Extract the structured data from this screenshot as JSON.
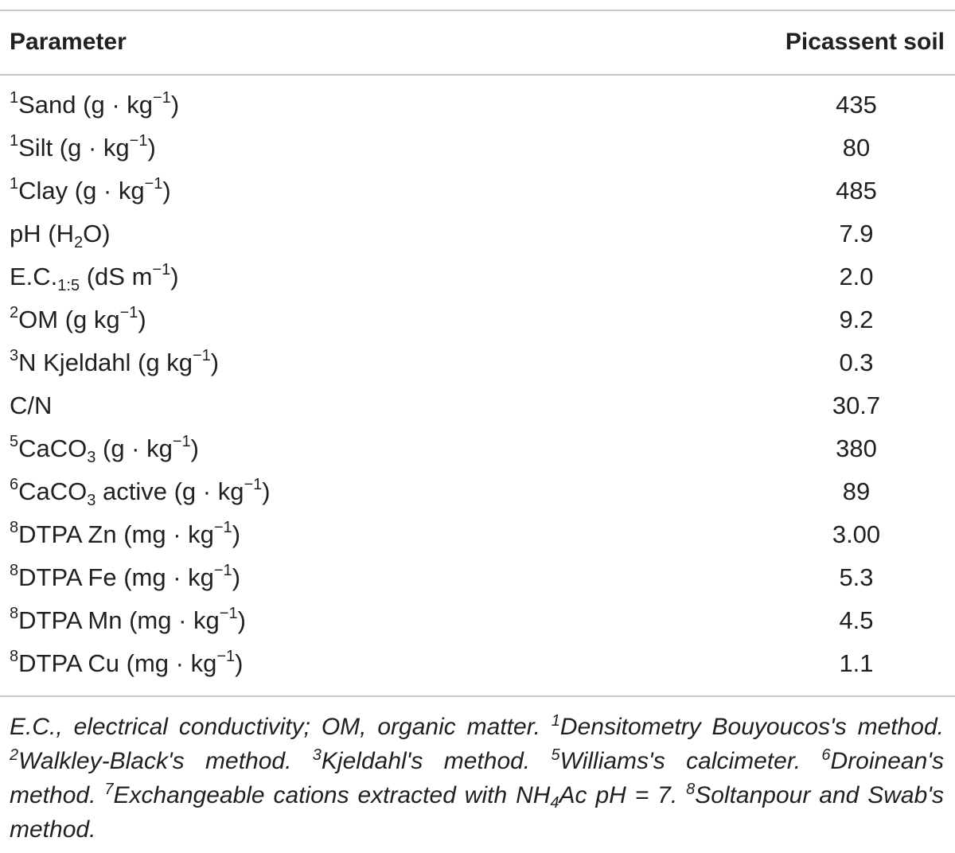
{
  "table": {
    "headers": {
      "parameter": "Parameter",
      "value": "Picassent soil"
    },
    "rows": [
      {
        "pre": "1",
        "text": "Sand (g · kg",
        "sup": "−1",
        "post": ")",
        "value": "435"
      },
      {
        "pre": "1",
        "text": "Silt (g · kg",
        "sup": "−1",
        "post": ")",
        "value": "80"
      },
      {
        "pre": "1",
        "text": "Clay (g · kg",
        "sup": "−1",
        "post": ")",
        "value": "485"
      },
      {
        "text": "pH (H",
        "sub": "2",
        "post": "O)",
        "value": "7.9"
      },
      {
        "text": "E.C.",
        "sub": "1:5",
        "mid": " (dS m",
        "sup": "−1",
        "post": ")",
        "value": "2.0"
      },
      {
        "pre": "2",
        "text": "OM (g kg",
        "sup": "−1",
        "post": ")",
        "value": "9.2"
      },
      {
        "pre": "3",
        "text": "N Kjeldahl (g kg",
        "sup": "−1",
        "post": ")",
        "value": "0.3"
      },
      {
        "text": "C/N",
        "value": "30.7"
      },
      {
        "pre": "5",
        "text": "CaCO",
        "sub": "3",
        "mid": " (g · kg",
        "sup": "−1",
        "post": ")",
        "value": "380"
      },
      {
        "pre": "6",
        "text": "CaCO",
        "sub": "3",
        "mid": " active (g · kg",
        "sup": "−1",
        "post": ")",
        "value": "89"
      },
      {
        "pre": "8",
        "text": "DTPA Zn (mg · kg",
        "sup": "−1",
        "post": ")",
        "value": "3.00"
      },
      {
        "pre": "8",
        "text": "DTPA Fe (mg · kg",
        "sup": "−1",
        "post": ")",
        "value": "5.3"
      },
      {
        "pre": "8",
        "text": "DTPA Mn (mg · kg",
        "sup": "−1",
        "post": ")",
        "value": "4.5"
      },
      {
        "pre": "8",
        "text": "DTPA Cu (mg · kg",
        "sup": "−1",
        "post": ")",
        "value": "1.1"
      }
    ]
  },
  "footnote": [
    {
      "t": "E.C., electrical conductivity; OM, organic matter. "
    },
    {
      "sup": "1"
    },
    {
      "t": "Densitometry Bouyoucos's method. "
    },
    {
      "sup": "2"
    },
    {
      "t": "Walkley-Black's method. "
    },
    {
      "sup": "3"
    },
    {
      "t": "Kjeldahl's method. "
    },
    {
      "sup": "5"
    },
    {
      "t": "Williams's calcimeter. "
    },
    {
      "sup": "6"
    },
    {
      "t": "Droinean's method. "
    },
    {
      "sup": "7"
    },
    {
      "t": "Exchangeable cations extracted with NH"
    },
    {
      "sub": "4"
    },
    {
      "t": "Ac pH = 7. "
    },
    {
      "sup": "8"
    },
    {
      "t": "Soltanpour and Swab's method."
    }
  ]
}
